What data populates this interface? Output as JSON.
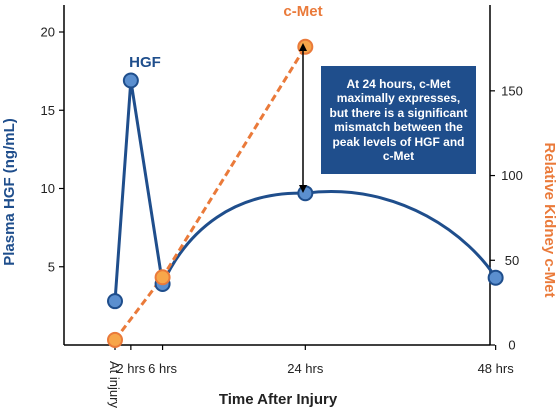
{
  "chart_data": {
    "type": "line",
    "xlabel": "Time After Injury",
    "ylabel_left": "Plasma HGF (ng/mL)",
    "ylabel_right": "Relative Kidney c-Met",
    "categories": [
      "At injury",
      "2 hrs",
      "6 hrs",
      "24 hrs",
      "48 hrs"
    ],
    "x_hours": [
      0,
      2,
      6,
      24,
      48
    ],
    "ylim_left": [
      0,
      20
    ],
    "yticks_left": [
      5,
      10,
      15,
      20
    ],
    "ylim_right": [
      0,
      180
    ],
    "yticks_right": [
      0,
      50,
      100,
      150
    ],
    "series": [
      {
        "name": "HGF",
        "axis": "left",
        "color": "#1f4e8c",
        "style": "solid",
        "x": [
          0,
          2,
          6,
          24,
          48
        ],
        "values": [
          2.8,
          16.9,
          3.9,
          9.7,
          4.3
        ]
      },
      {
        "name": "c-Met",
        "axis": "right",
        "color": "#ea7a3a",
        "style": "dashed",
        "x": [
          0,
          6,
          24
        ],
        "values": [
          3,
          40,
          176
        ]
      }
    ],
    "annotation": "At 24 hours, c-Met maximally expresses, but there is a significant mismatch between the peak levels of HGF and c-Met",
    "grid": false
  }
}
